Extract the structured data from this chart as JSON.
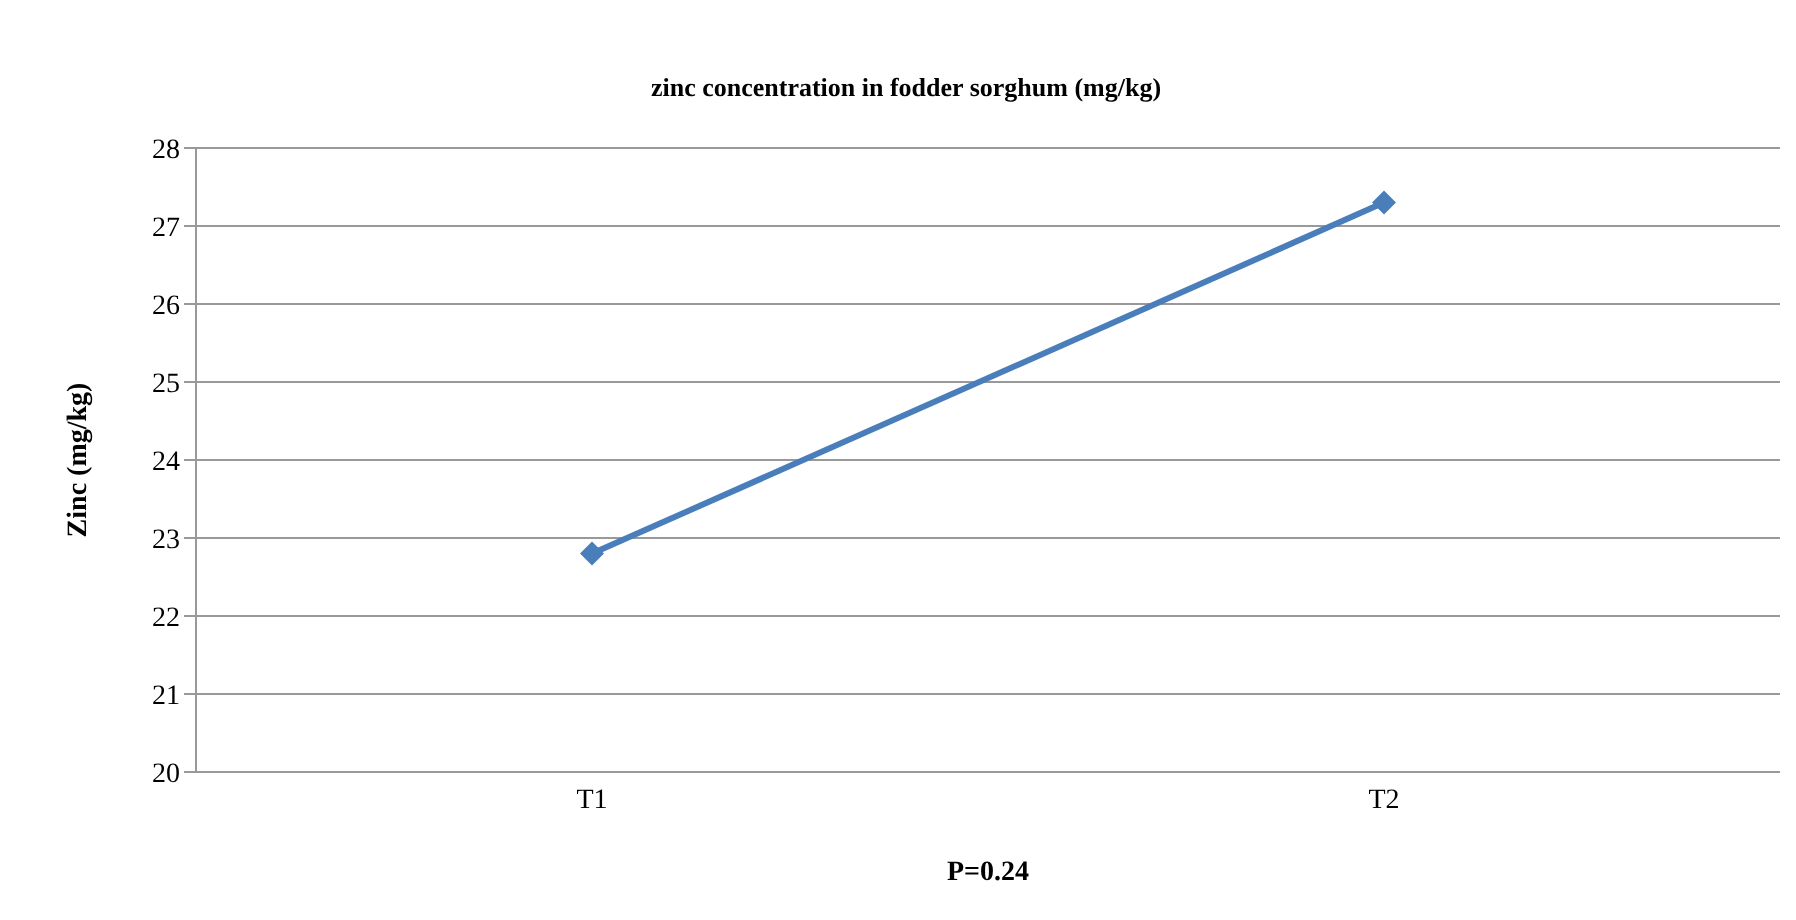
{
  "chart_data": {
    "type": "line",
    "title": "zinc concentration in fodder sorghum (mg/kg)",
    "xlabel": "P=0.24",
    "ylabel": "Zinc (mg/kg)",
    "categories": [
      "T1",
      "T2"
    ],
    "series": [
      {
        "color": "#4a7ebb",
        "values": [
          22.8,
          27.3
        ]
      }
    ],
    "ylim": [
      20,
      28
    ],
    "yticks": [
      20,
      21,
      22,
      23,
      24,
      25,
      26,
      27,
      28
    ],
    "grid": "y",
    "legend": false,
    "marker": "diamond",
    "line_style": "solid"
  }
}
